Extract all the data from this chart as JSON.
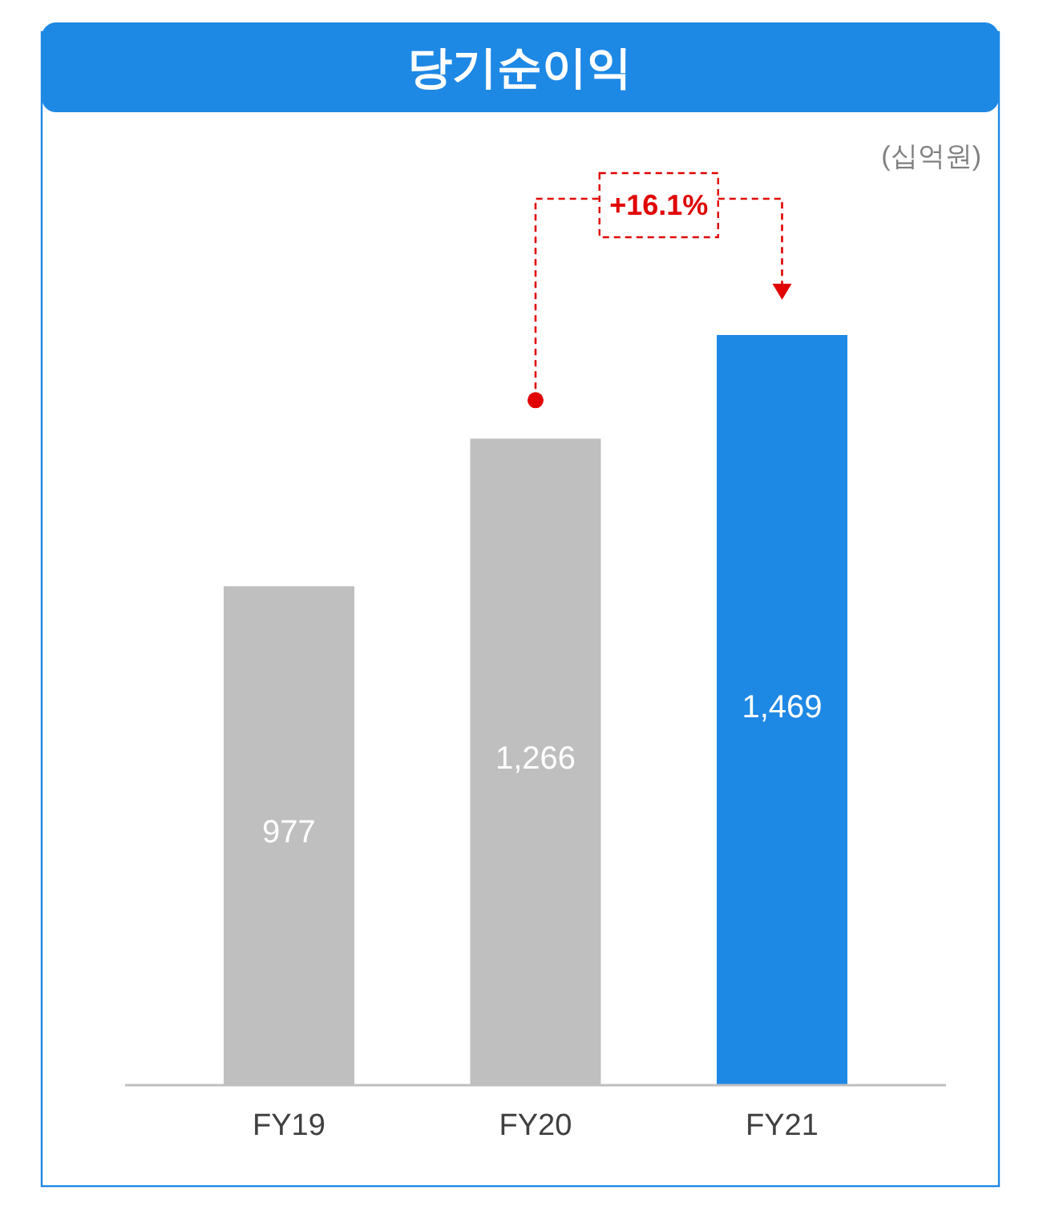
{
  "chart_data": {
    "type": "bar",
    "title": "당기순이익",
    "categories": [
      "FY19",
      "FY20",
      "FY21"
    ],
    "values": [
      977,
      1266,
      1469
    ],
    "value_labels": [
      "977",
      "1,266",
      "1,469"
    ],
    "colors": [
      "#bfbfbf",
      "#bfbfbf",
      "#1e88e5"
    ],
    "annotations": [
      "+16.1%",
      "(십억원)"
    ]
  }
}
